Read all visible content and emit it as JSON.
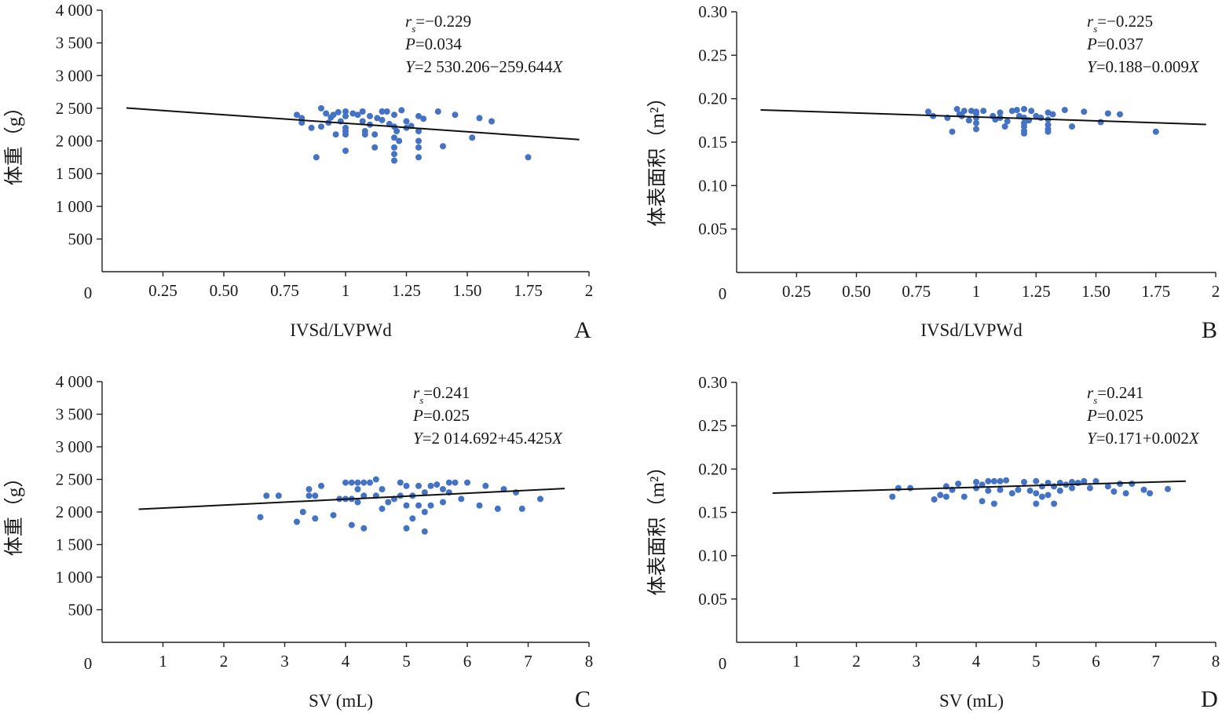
{
  "figure": {
    "panels": [
      "A",
      "B",
      "C",
      "D"
    ]
  },
  "chart_data": [
    {
      "type": "scatter",
      "panel": "A",
      "xlabel": "IVSd/LVPWd",
      "ylabel": "体重（g）",
      "xlim": [
        0,
        2
      ],
      "ylim": [
        0,
        4000
      ],
      "x_ticks": [
        "0.25",
        "0.50",
        "0.75",
        "1",
        "1.25",
        "1.50",
        "1.75",
        "2"
      ],
      "y_ticks": [
        "500",
        "1 000",
        "1 500",
        "2 000",
        "2 500",
        "3 000",
        "3 500",
        "4 000"
      ],
      "origin_label": "0",
      "annotation": {
        "r": "r",
        "r_sub": "s",
        "r_val": "=−0.229",
        "p": "P",
        "p_val": "=0.034",
        "eq_y": "Y",
        "eq_body": "=2 530.206−259.644",
        "eq_x": "X"
      },
      "fit_line": {
        "x0": 0.1,
        "x1": 1.96,
        "intercept": 2530.206,
        "slope": -259.644
      },
      "points": [
        [
          0.8,
          2400
        ],
        [
          0.82,
          2350
        ],
        [
          0.82,
          2280
        ],
        [
          0.86,
          2200
        ],
        [
          0.88,
          1750
        ],
        [
          0.9,
          2500
        ],
        [
          0.9,
          2220
        ],
        [
          0.92,
          2420
        ],
        [
          0.93,
          2280
        ],
        [
          0.94,
          2360
        ],
        [
          0.95,
          2400
        ],
        [
          0.96,
          2100
        ],
        [
          0.97,
          2440
        ],
        [
          0.98,
          2300
        ],
        [
          1.0,
          2450
        ],
        [
          1.0,
          2200
        ],
        [
          1.0,
          2150
        ],
        [
          1.0,
          2100
        ],
        [
          1.0,
          1850
        ],
        [
          1.0,
          2380
        ],
        [
          1.03,
          2420
        ],
        [
          1.05,
          2400
        ],
        [
          1.07,
          2300
        ],
        [
          1.07,
          2450
        ],
        [
          1.08,
          2150
        ],
        [
          1.08,
          2100
        ],
        [
          1.1,
          2380
        ],
        [
          1.1,
          2250
        ],
        [
          1.12,
          2100
        ],
        [
          1.12,
          1900
        ],
        [
          1.13,
          2350
        ],
        [
          1.15,
          2450
        ],
        [
          1.15,
          2320
        ],
        [
          1.17,
          2450
        ],
        [
          1.18,
          2260
        ],
        [
          1.2,
          2400
        ],
        [
          1.2,
          2220
        ],
        [
          1.2,
          2050
        ],
        [
          1.2,
          1900
        ],
        [
          1.2,
          1800
        ],
        [
          1.2,
          1700
        ],
        [
          1.21,
          2150
        ],
        [
          1.22,
          2000
        ],
        [
          1.23,
          2470
        ],
        [
          1.25,
          2200
        ],
        [
          1.25,
          2300
        ],
        [
          1.27,
          2230
        ],
        [
          1.3,
          2380
        ],
        [
          1.3,
          2150
        ],
        [
          1.3,
          2000
        ],
        [
          1.3,
          1900
        ],
        [
          1.3,
          1750
        ],
        [
          1.32,
          2340
        ],
        [
          1.38,
          2450
        ],
        [
          1.4,
          1920
        ],
        [
          1.45,
          2400
        ],
        [
          1.52,
          2050
        ],
        [
          1.55,
          2350
        ],
        [
          1.6,
          2300
        ],
        [
          1.75,
          1750
        ]
      ]
    },
    {
      "type": "scatter",
      "panel": "B",
      "xlabel": "IVSd/LVPWd",
      "ylabel": "体表面积（m²）",
      "xlim": [
        0,
        2
      ],
      "ylim": [
        0,
        0.3
      ],
      "x_ticks": [
        "0.25",
        "0.50",
        "0.75",
        "1",
        "1.25",
        "1.50",
        "1.75",
        "2"
      ],
      "y_ticks": [
        "0.05",
        "0.10",
        "0.15",
        "0.20",
        "0.25",
        "0.30"
      ],
      "origin_label": "0",
      "annotation": {
        "r": "r",
        "r_sub": "s",
        "r_val": "=−0.225",
        "p": "P",
        "p_val": "=0.037",
        "eq_y": "Y",
        "eq_body": "=0.188−0.009",
        "eq_x": "X"
      },
      "fit_line": {
        "x0": 0.1,
        "x1": 1.96,
        "intercept": 0.188,
        "slope": -0.009
      },
      "points": [
        [
          0.8,
          0.185
        ],
        [
          0.82,
          0.18
        ],
        [
          0.88,
          0.178
        ],
        [
          0.9,
          0.162
        ],
        [
          0.92,
          0.188
        ],
        [
          0.93,
          0.182
        ],
        [
          0.94,
          0.18
        ],
        [
          0.95,
          0.186
        ],
        [
          0.97,
          0.175
        ],
        [
          0.98,
          0.186
        ],
        [
          1.0,
          0.185
        ],
        [
          1.0,
          0.178
        ],
        [
          1.0,
          0.172
        ],
        [
          1.0,
          0.165
        ],
        [
          1.0,
          0.183
        ],
        [
          1.03,
          0.186
        ],
        [
          1.07,
          0.18
        ],
        [
          1.08,
          0.176
        ],
        [
          1.1,
          0.184
        ],
        [
          1.1,
          0.178
        ],
        [
          1.12,
          0.168
        ],
        [
          1.13,
          0.174
        ],
        [
          1.15,
          0.186
        ],
        [
          1.17,
          0.187
        ],
        [
          1.18,
          0.18
        ],
        [
          1.2,
          0.188
        ],
        [
          1.2,
          0.178
        ],
        [
          1.2,
          0.172
        ],
        [
          1.2,
          0.168
        ],
        [
          1.2,
          0.163
        ],
        [
          1.2,
          0.16
        ],
        [
          1.22,
          0.175
        ],
        [
          1.23,
          0.186
        ],
        [
          1.25,
          0.18
        ],
        [
          1.27,
          0.178
        ],
        [
          1.3,
          0.184
        ],
        [
          1.3,
          0.176
        ],
        [
          1.3,
          0.17
        ],
        [
          1.3,
          0.165
        ],
        [
          1.3,
          0.162
        ],
        [
          1.32,
          0.182
        ],
        [
          1.37,
          0.187
        ],
        [
          1.4,
          0.168
        ],
        [
          1.45,
          0.185
        ],
        [
          1.52,
          0.173
        ],
        [
          1.55,
          0.183
        ],
        [
          1.6,
          0.182
        ],
        [
          1.75,
          0.162
        ]
      ]
    },
    {
      "type": "scatter",
      "panel": "C",
      "xlabel": "SV (mL)",
      "ylabel": "体重（g）",
      "xlim": [
        0,
        8
      ],
      "ylim": [
        0,
        4000
      ],
      "x_ticks": [
        "1",
        "2",
        "3",
        "4",
        "5",
        "6",
        "7",
        "8"
      ],
      "y_ticks": [
        "500",
        "1 000",
        "1 500",
        "2 000",
        "2 500",
        "3 000",
        "3 500",
        "4 000"
      ],
      "origin_label": "0",
      "annotation": {
        "r": "r",
        "r_sub": "s",
        "r_val": "=0.241",
        "p": "P",
        "p_val": "=0.025",
        "eq_y": "Y",
        "eq_body": "=2 014.692+45.425",
        "eq_x": "X"
      },
      "fit_line": {
        "x0": 0.6,
        "x1": 7.6,
        "intercept": 2014.692,
        "slope": 45.425
      },
      "points": [
        [
          2.6,
          1920
        ],
        [
          2.7,
          2250
        ],
        [
          2.9,
          2250
        ],
        [
          3.2,
          1850
        ],
        [
          3.3,
          2000
        ],
        [
          3.4,
          2350
        ],
        [
          3.4,
          2250
        ],
        [
          3.5,
          1900
        ],
        [
          3.5,
          2250
        ],
        [
          3.6,
          2400
        ],
        [
          3.8,
          1950
        ],
        [
          3.9,
          2200
        ],
        [
          4.0,
          2450
        ],
        [
          4.0,
          2200
        ],
        [
          4.1,
          2450
        ],
        [
          4.1,
          2200
        ],
        [
          4.1,
          1800
        ],
        [
          4.2,
          2450
        ],
        [
          4.2,
          2350
        ],
        [
          4.2,
          2150
        ],
        [
          4.3,
          2450
        ],
        [
          4.3,
          2250
        ],
        [
          4.3,
          1750
        ],
        [
          4.4,
          2450
        ],
        [
          4.5,
          2500
        ],
        [
          4.5,
          2250
        ],
        [
          4.6,
          2350
        ],
        [
          4.6,
          2050
        ],
        [
          4.7,
          2150
        ],
        [
          4.8,
          2200
        ],
        [
          4.9,
          2450
        ],
        [
          4.9,
          2250
        ],
        [
          5.0,
          2400
        ],
        [
          5.0,
          2100
        ],
        [
          5.0,
          1750
        ],
        [
          5.1,
          2250
        ],
        [
          5.1,
          1900
        ],
        [
          5.2,
          2400
        ],
        [
          5.2,
          2100
        ],
        [
          5.3,
          2300
        ],
        [
          5.3,
          2000
        ],
        [
          5.3,
          1700
        ],
        [
          5.4,
          2400
        ],
        [
          5.4,
          2100
        ],
        [
          5.5,
          2420
        ],
        [
          5.6,
          2350
        ],
        [
          5.6,
          2150
        ],
        [
          5.7,
          2450
        ],
        [
          5.7,
          2300
        ],
        [
          5.8,
          2450
        ],
        [
          5.9,
          2200
        ],
        [
          6.0,
          2450
        ],
        [
          6.2,
          2100
        ],
        [
          6.3,
          2400
        ],
        [
          6.5,
          2050
        ],
        [
          6.6,
          2350
        ],
        [
          6.8,
          2300
        ],
        [
          6.9,
          2050
        ],
        [
          7.2,
          2200
        ]
      ]
    },
    {
      "type": "scatter",
      "panel": "D",
      "xlabel": "SV (mL)",
      "ylabel": "体表面积（m²）",
      "xlim": [
        0,
        8
      ],
      "ylim": [
        0,
        0.3
      ],
      "x_ticks": [
        "1",
        "2",
        "3",
        "4",
        "5",
        "6",
        "7",
        "8"
      ],
      "y_ticks": [
        "0.05",
        "0.10",
        "0.15",
        "0.20",
        "0.25",
        "0.30"
      ],
      "origin_label": "0",
      "annotation": {
        "r": "r",
        "r_sub": "s",
        "r_val": "=0.241",
        "p": "P",
        "p_val": "=0.025",
        "eq_y": "Y",
        "eq_body": "=0.171+0.002",
        "eq_x": "X"
      },
      "fit_line": {
        "x0": 0.6,
        "x1": 7.5,
        "intercept": 0.171,
        "slope": 0.002
      },
      "points": [
        [
          2.6,
          0.168
        ],
        [
          2.7,
          0.178
        ],
        [
          2.9,
          0.178
        ],
        [
          3.3,
          0.165
        ],
        [
          3.4,
          0.17
        ],
        [
          3.5,
          0.18
        ],
        [
          3.5,
          0.168
        ],
        [
          3.6,
          0.176
        ],
        [
          3.7,
          0.183
        ],
        [
          3.8,
          0.168
        ],
        [
          4.0,
          0.178
        ],
        [
          4.0,
          0.185
        ],
        [
          4.1,
          0.182
        ],
        [
          4.1,
          0.163
        ],
        [
          4.2,
          0.186
        ],
        [
          4.2,
          0.175
        ],
        [
          4.3,
          0.186
        ],
        [
          4.3,
          0.16
        ],
        [
          4.4,
          0.186
        ],
        [
          4.4,
          0.176
        ],
        [
          4.5,
          0.187
        ],
        [
          4.6,
          0.172
        ],
        [
          4.7,
          0.176
        ],
        [
          4.8,
          0.185
        ],
        [
          4.9,
          0.175
        ],
        [
          5.0,
          0.186
        ],
        [
          5.0,
          0.172
        ],
        [
          5.0,
          0.16
        ],
        [
          5.1,
          0.18
        ],
        [
          5.1,
          0.168
        ],
        [
          5.2,
          0.184
        ],
        [
          5.2,
          0.17
        ],
        [
          5.3,
          0.18
        ],
        [
          5.3,
          0.16
        ],
        [
          5.4,
          0.184
        ],
        [
          5.4,
          0.175
        ],
        [
          5.5,
          0.182
        ],
        [
          5.6,
          0.185
        ],
        [
          5.6,
          0.178
        ],
        [
          5.7,
          0.184
        ],
        [
          5.8,
          0.186
        ],
        [
          5.9,
          0.178
        ],
        [
          6.0,
          0.186
        ],
        [
          6.2,
          0.18
        ],
        [
          6.3,
          0.174
        ],
        [
          6.4,
          0.183
        ],
        [
          6.5,
          0.172
        ],
        [
          6.6,
          0.183
        ],
        [
          6.8,
          0.176
        ],
        [
          6.9,
          0.172
        ],
        [
          7.2,
          0.177
        ]
      ]
    }
  ],
  "colors": {
    "point": "#4472C4",
    "fit_line": "#111111",
    "axis": "#222222"
  }
}
